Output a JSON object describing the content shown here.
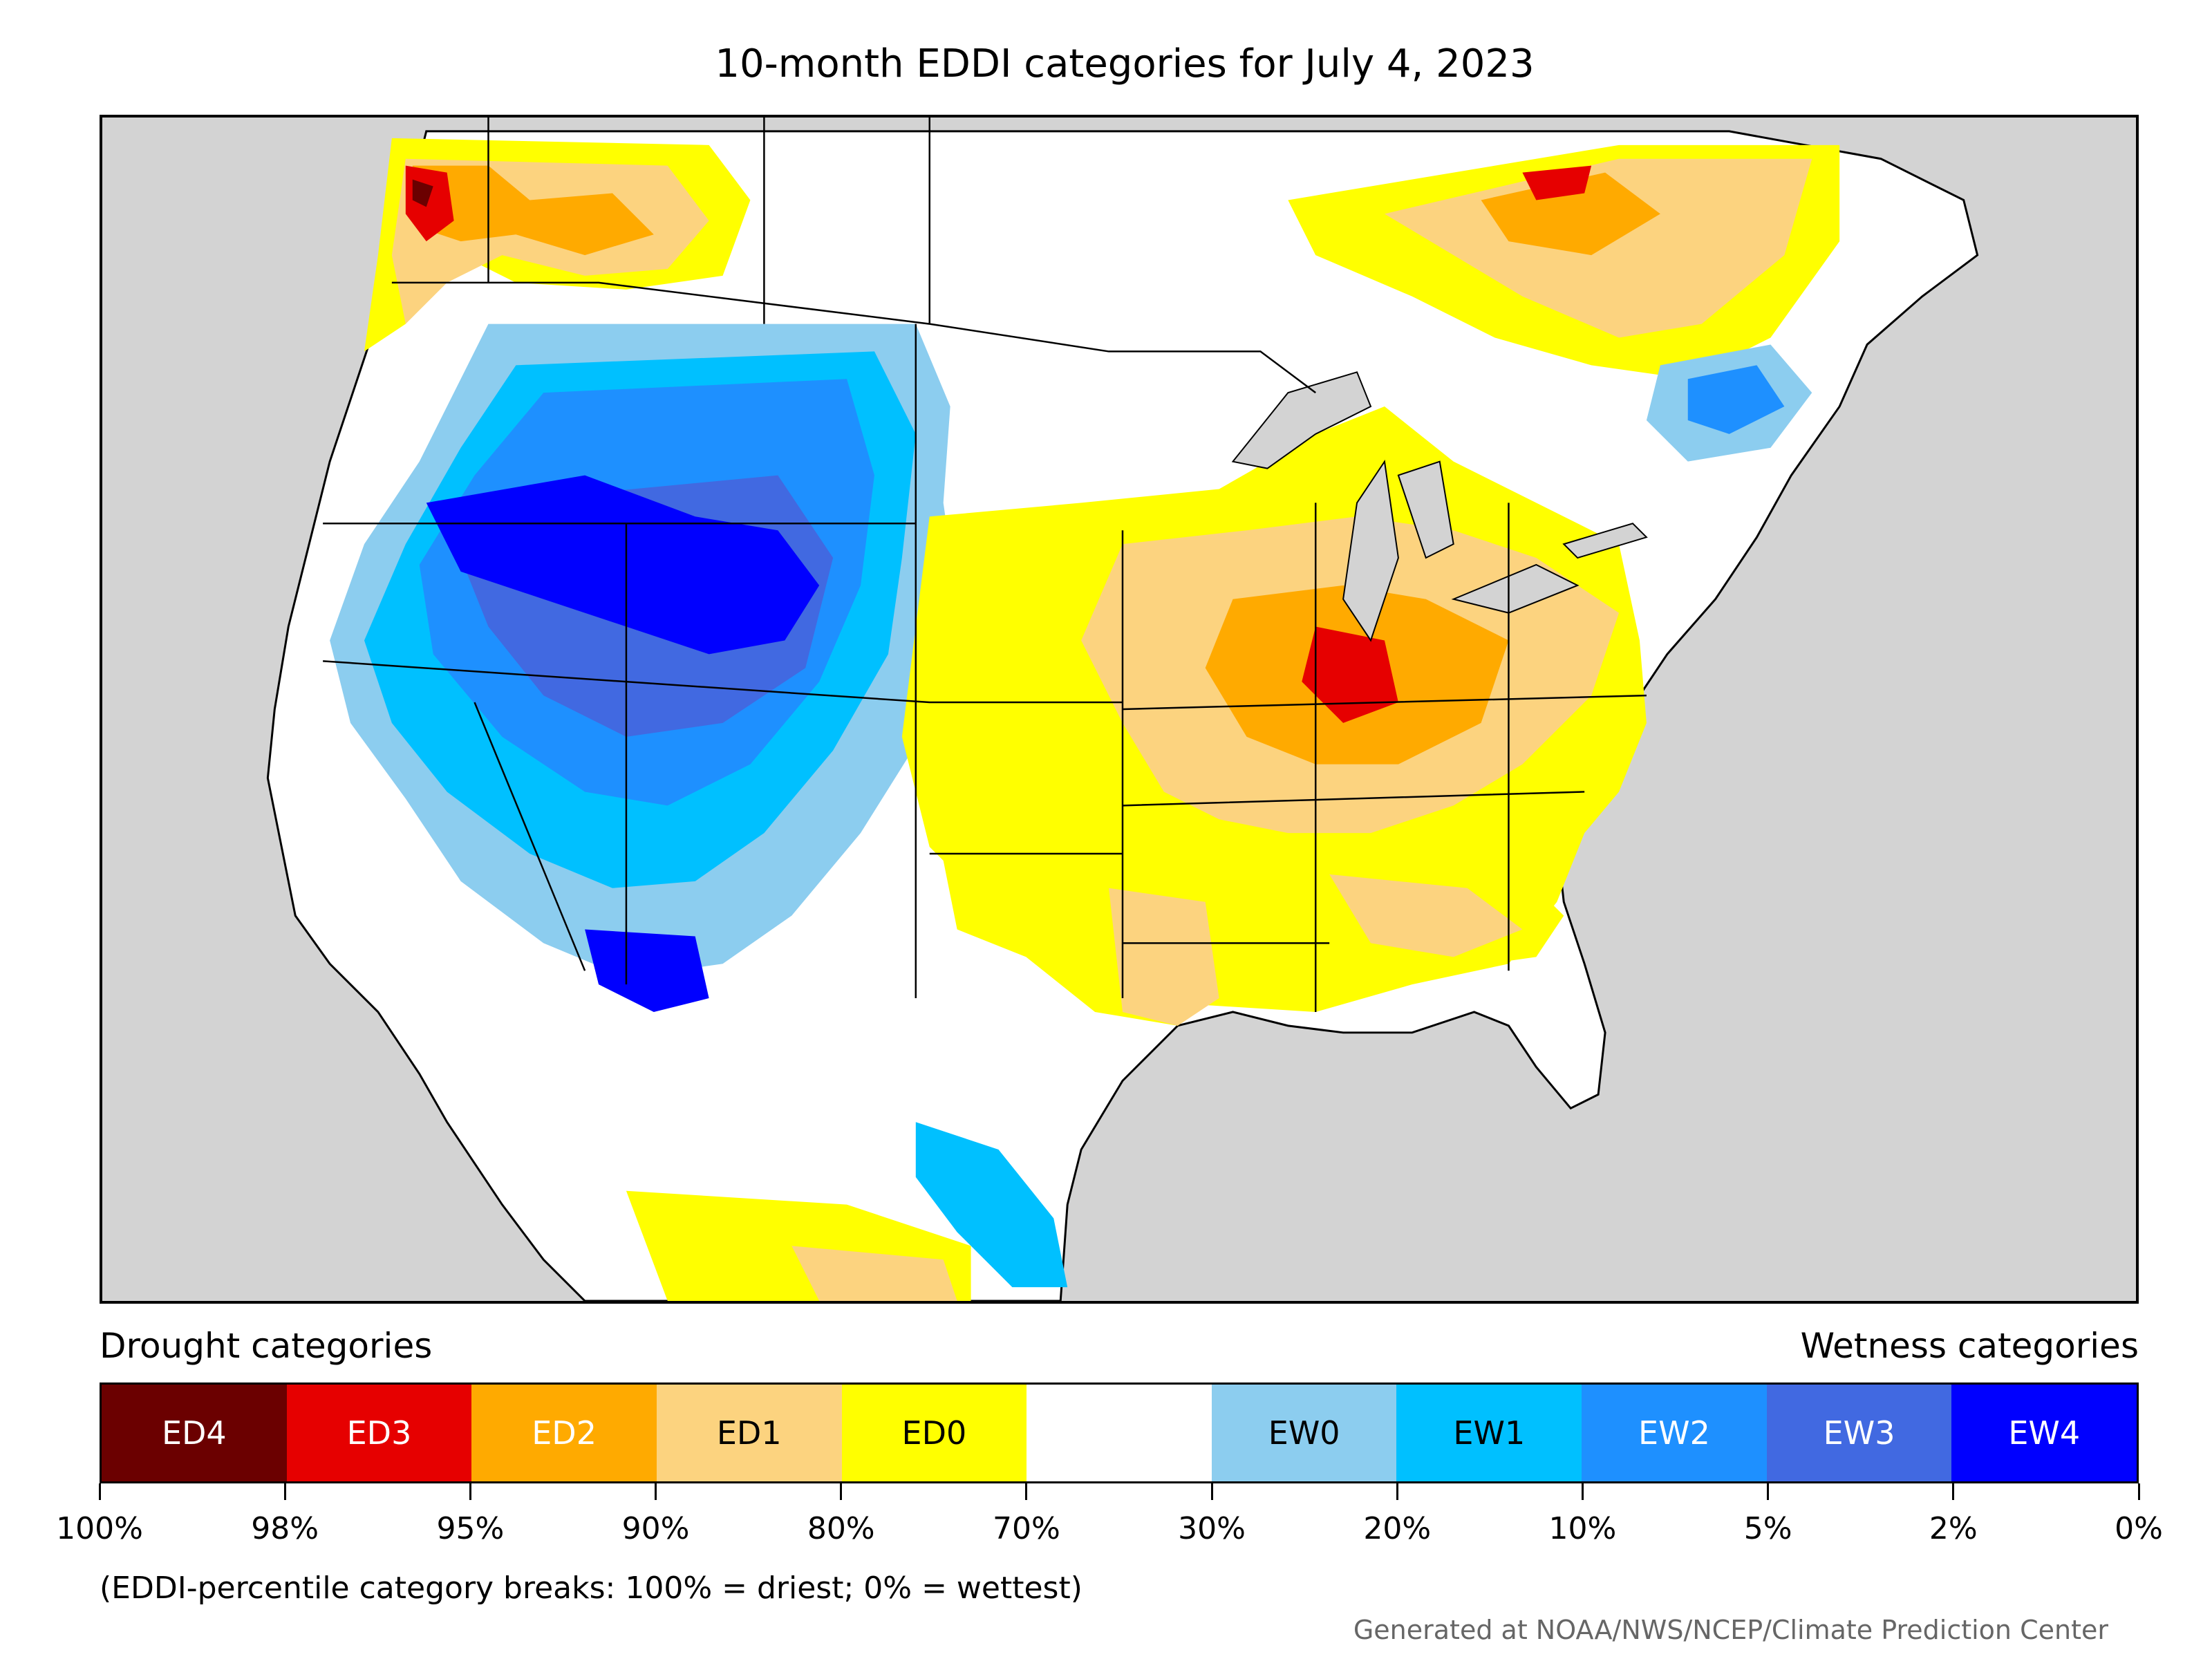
{
  "title": "10-month EDDI categories for July 4, 2023",
  "legend": {
    "drought_heading": "Drought categories",
    "wetness_heading": "Wetness categories",
    "categories": [
      {
        "label": "ED4",
        "color": "#6b0000",
        "text_color": "#ffffff"
      },
      {
        "label": "ED3",
        "color": "#e60000",
        "text_color": "#ffffff"
      },
      {
        "label": "ED2",
        "color": "#ffaa00",
        "text_color": "#ffffff"
      },
      {
        "label": "ED1",
        "color": "#fcd37f",
        "text_color": "#000000"
      },
      {
        "label": "ED0",
        "color": "#ffff00",
        "text_color": "#000000"
      },
      {
        "label": "",
        "color": "#ffffff",
        "text_color": "#000000"
      },
      {
        "label": "EW0",
        "color": "#8ccdef",
        "text_color": "#000000"
      },
      {
        "label": "EW1",
        "color": "#00c0ff",
        "text_color": "#000000"
      },
      {
        "label": "EW2",
        "color": "#1e90ff",
        "text_color": "#ffffff"
      },
      {
        "label": "EW3",
        "color": "#4169e1",
        "text_color": "#ffffff"
      },
      {
        "label": "EW4",
        "color": "#0000ff",
        "text_color": "#ffffff"
      }
    ],
    "tick_labels": [
      "100%",
      "98%",
      "95%",
      "90%",
      "80%",
      "70%",
      "30%",
      "20%",
      "10%",
      "5%",
      "2%",
      "0%"
    ],
    "note": "(EDDI-percentile category breaks: 100% = driest; 0% = wettest)"
  },
  "credit": "Generated at NOAA/NWS/NCEP/Climate Prediction Center",
  "colors": {
    "ocean": "#d3d3d3",
    "land": "#ffffff",
    "border": "#000000"
  }
}
